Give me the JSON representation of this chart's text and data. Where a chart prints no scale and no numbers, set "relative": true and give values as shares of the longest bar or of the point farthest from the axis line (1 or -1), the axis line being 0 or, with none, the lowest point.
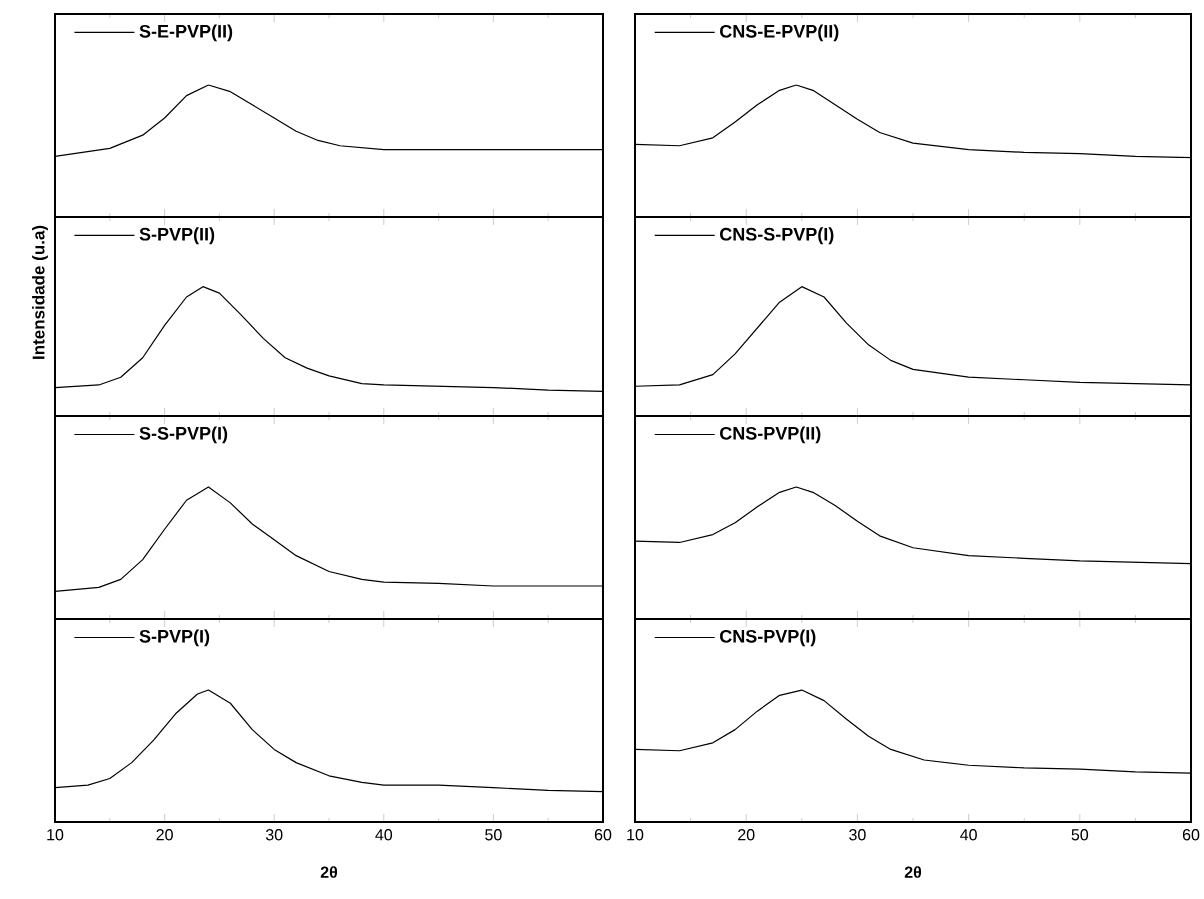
{
  "chart_data": [
    {
      "type": "line",
      "relative": true,
      "xlim": [
        10,
        60
      ],
      "xticks": [
        10,
        20,
        30,
        40,
        50,
        60
      ],
      "tick_labels": false,
      "legend": "top left",
      "x": [
        10,
        15,
        18,
        20,
        22,
        24,
        26,
        28,
        30,
        32,
        34,
        36,
        40,
        45,
        50,
        55,
        60
      ],
      "series": [
        {
          "name": "S-E-PVP(II)",
          "color": "#000000",
          "values": [
            0.46,
            0.52,
            0.62,
            0.75,
            0.92,
            1.0,
            0.95,
            0.85,
            0.75,
            0.65,
            0.58,
            0.54,
            0.51,
            0.51,
            0.51,
            0.51,
            0.51
          ]
        }
      ]
    },
    {
      "type": "line",
      "relative": true,
      "xlim": [
        10,
        60
      ],
      "xticks": [
        10,
        20,
        30,
        40,
        50,
        60
      ],
      "tick_labels": false,
      "legend": "top left",
      "ylabel": "Intensidade (u.a)",
      "x": [
        10,
        14,
        16,
        18,
        20,
        22,
        23.5,
        25,
        27,
        29,
        31,
        33,
        35,
        38,
        40,
        45,
        50,
        55,
        60
      ],
      "series": [
        {
          "name": "S-PVP(II)",
          "color": "#000000",
          "values": [
            0.22,
            0.24,
            0.3,
            0.45,
            0.7,
            0.92,
            1.0,
            0.95,
            0.78,
            0.6,
            0.45,
            0.37,
            0.31,
            0.25,
            0.24,
            0.23,
            0.22,
            0.2,
            0.19
          ]
        }
      ]
    },
    {
      "type": "line",
      "relative": true,
      "xlim": [
        10,
        60
      ],
      "xticks": [
        10,
        20,
        30,
        40,
        50,
        60
      ],
      "tick_labels": false,
      "legend": "top left",
      "x": [
        10,
        14,
        16,
        18,
        20,
        22,
        24,
        26,
        28,
        30,
        32,
        35,
        38,
        40,
        45,
        50,
        55,
        60
      ],
      "series": [
        {
          "name": "S-S-PVP(I)",
          "color": "#000000",
          "values": [
            0.21,
            0.24,
            0.3,
            0.45,
            0.68,
            0.9,
            1.0,
            0.88,
            0.72,
            0.6,
            0.48,
            0.36,
            0.3,
            0.28,
            0.27,
            0.25,
            0.25,
            0.25
          ]
        }
      ]
    },
    {
      "type": "line",
      "relative": true,
      "xlim": [
        10,
        60
      ],
      "xticks": [
        10,
        20,
        30,
        40,
        50,
        60
      ],
      "tick_labels": "x",
      "legend": "top left",
      "xlabel": "2θ",
      "x": [
        10,
        13,
        15,
        17,
        19,
        21,
        23,
        24,
        26,
        28,
        30,
        32,
        35,
        38,
        40,
        45,
        50,
        55,
        60
      ],
      "series": [
        {
          "name": "S-PVP(I)",
          "color": "#000000",
          "values": [
            0.26,
            0.28,
            0.33,
            0.45,
            0.62,
            0.82,
            0.97,
            1.0,
            0.9,
            0.7,
            0.55,
            0.45,
            0.35,
            0.3,
            0.28,
            0.28,
            0.26,
            0.24,
            0.23
          ]
        }
      ]
    },
    {
      "type": "line",
      "relative": true,
      "xlim": [
        10,
        60
      ],
      "xticks": [
        10,
        20,
        30,
        40,
        50,
        60
      ],
      "tick_labels": false,
      "legend": "top left",
      "x": [
        10,
        14,
        17,
        19,
        21,
        23,
        24.5,
        26,
        28,
        30,
        32,
        35,
        40,
        45,
        50,
        55,
        60
      ],
      "series": [
        {
          "name": "CNS-E-PVP(II)",
          "color": "#000000",
          "values": [
            0.55,
            0.54,
            0.6,
            0.72,
            0.85,
            0.96,
            1.0,
            0.96,
            0.85,
            0.74,
            0.64,
            0.56,
            0.51,
            0.49,
            0.48,
            0.46,
            0.45
          ]
        }
      ]
    },
    {
      "type": "line",
      "relative": true,
      "xlim": [
        10,
        60
      ],
      "xticks": [
        10,
        20,
        30,
        40,
        50,
        60
      ],
      "tick_labels": false,
      "legend": "top left",
      "x": [
        10,
        14,
        17,
        19,
        21,
        23,
        25,
        27,
        29,
        31,
        33,
        35,
        40,
        45,
        50,
        55,
        60
      ],
      "series": [
        {
          "name": "CNS-S-PVP(I)",
          "color": "#000000",
          "values": [
            0.23,
            0.24,
            0.32,
            0.48,
            0.68,
            0.88,
            1.0,
            0.92,
            0.72,
            0.55,
            0.43,
            0.36,
            0.3,
            0.28,
            0.26,
            0.25,
            0.24
          ]
        }
      ]
    },
    {
      "type": "line",
      "relative": true,
      "xlim": [
        10,
        60
      ],
      "xticks": [
        10,
        20,
        30,
        40,
        50,
        60
      ],
      "tick_labels": false,
      "legend": "top left",
      "x": [
        10,
        14,
        17,
        19,
        21,
        23,
        24.5,
        26,
        28,
        30,
        32,
        35,
        40,
        45,
        50,
        55,
        60
      ],
      "series": [
        {
          "name": "CNS-PVP(II)",
          "color": "#000000",
          "values": [
            0.59,
            0.58,
            0.64,
            0.73,
            0.85,
            0.96,
            1.0,
            0.96,
            0.86,
            0.74,
            0.63,
            0.54,
            0.48,
            0.46,
            0.44,
            0.43,
            0.42
          ]
        }
      ]
    },
    {
      "type": "line",
      "relative": true,
      "xlim": [
        10,
        60
      ],
      "xticks": [
        10,
        20,
        30,
        40,
        50,
        60
      ],
      "tick_labels": "x",
      "legend": "top left",
      "xlabel": "2θ",
      "x": [
        10,
        14,
        17,
        19,
        21,
        23,
        25,
        27,
        29,
        31,
        33,
        36,
        40,
        45,
        50,
        55,
        60
      ],
      "series": [
        {
          "name": "CNS-PVP(I)",
          "color": "#000000",
          "values": [
            0.55,
            0.54,
            0.6,
            0.7,
            0.84,
            0.96,
            1.0,
            0.92,
            0.78,
            0.65,
            0.55,
            0.47,
            0.43,
            0.41,
            0.4,
            0.38,
            0.37
          ]
        }
      ]
    }
  ]
}
